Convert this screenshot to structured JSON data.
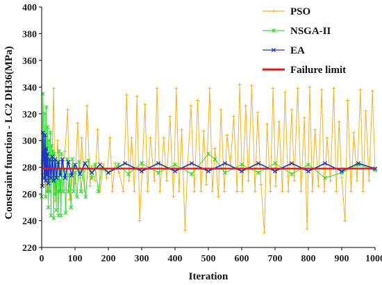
{
  "chart_data": {
    "type": "line",
    "title": "",
    "xlabel": "Iteration",
    "ylabel": "Constraint function - LC2 DH36(MPa)",
    "xlim": [
      0,
      1000
    ],
    "ylim": [
      220,
      400
    ],
    "xticks": [
      0,
      100,
      200,
      300,
      400,
      500,
      600,
      700,
      800,
      900,
      1000
    ],
    "yticks": [
      220,
      240,
      260,
      280,
      300,
      320,
      340,
      360,
      380,
      400
    ],
    "grid": false,
    "legend_position": "top-right",
    "series": [
      {
        "name": "PSO",
        "color": "#f2b21e",
        "marker": "plus",
        "values": [
          [
            2,
            275
          ],
          [
            6,
            292
          ],
          [
            10,
            266
          ],
          [
            14,
            300
          ],
          [
            18,
            262
          ],
          [
            22,
            285
          ],
          [
            26,
            270
          ],
          [
            30,
            276
          ],
          [
            36,
            339
          ],
          [
            40,
            255
          ],
          [
            48,
            300
          ],
          [
            55,
            262
          ],
          [
            62,
            278
          ],
          [
            70,
            292
          ],
          [
            78,
            323
          ],
          [
            84,
            256
          ],
          [
            92,
            282
          ],
          [
            100,
            268
          ],
          [
            108,
            313
          ],
          [
            115,
            272
          ],
          [
            120,
            302
          ],
          [
            128,
            262
          ],
          [
            136,
            326
          ],
          [
            145,
            266
          ],
          [
            150,
            281
          ],
          [
            160,
            270
          ],
          [
            168,
            308
          ],
          [
            175,
            262
          ],
          [
            185,
            282
          ],
          [
            195,
            272
          ],
          [
            205,
            302
          ],
          [
            212,
            262
          ],
          [
            220,
            283
          ],
          [
            232,
            276
          ],
          [
            245,
            262
          ],
          [
            255,
            334
          ],
          [
            262,
            270
          ],
          [
            270,
            302
          ],
          [
            278,
            262
          ],
          [
            286,
            333
          ],
          [
            294,
            240
          ],
          [
            302,
            281
          ],
          [
            310,
            327
          ],
          [
            318,
            262
          ],
          [
            326,
            302
          ],
          [
            338,
            270
          ],
          [
            346,
            339
          ],
          [
            355,
            262
          ],
          [
            366,
            302
          ],
          [
            375,
            270
          ],
          [
            385,
            318
          ],
          [
            395,
            258
          ],
          [
            404,
            339
          ],
          [
            412,
            262
          ],
          [
            420,
            308
          ],
          [
            430,
            233
          ],
          [
            438,
            282
          ],
          [
            448,
            326
          ],
          [
            458,
            262
          ],
          [
            468,
            330
          ],
          [
            478,
            262
          ],
          [
            486,
            307
          ],
          [
            494,
            267
          ],
          [
            504,
            339
          ],
          [
            512,
            262
          ],
          [
            520,
            294
          ],
          [
            530,
            258
          ],
          [
            538,
            323
          ],
          [
            548,
            262
          ],
          [
            556,
            304
          ],
          [
            566,
            282
          ],
          [
            576,
            318
          ],
          [
            586,
            262
          ],
          [
            594,
            342
          ],
          [
            602,
            262
          ],
          [
            612,
            326
          ],
          [
            620,
            270
          ],
          [
            630,
            341
          ],
          [
            640,
            262
          ],
          [
            648,
            321
          ],
          [
            658,
            267
          ],
          [
            668,
            231
          ],
          [
            676,
            312
          ],
          [
            686,
            262
          ],
          [
            694,
            339
          ],
          [
            702,
            266
          ],
          [
            712,
            314
          ],
          [
            722,
            262
          ],
          [
            730,
            336
          ],
          [
            740,
            262
          ],
          [
            750,
            323
          ],
          [
            758,
            270
          ],
          [
            768,
            339
          ],
          [
            778,
            262
          ],
          [
            788,
            317
          ],
          [
            796,
            234
          ],
          [
            804,
            340
          ],
          [
            812,
            262
          ],
          [
            820,
            308
          ],
          [
            830,
            266
          ],
          [
            840,
            338
          ],
          [
            848,
            262
          ],
          [
            856,
            302
          ],
          [
            866,
            270
          ],
          [
            876,
            339
          ],
          [
            884,
            262
          ],
          [
            892,
            314
          ],
          [
            900,
            272
          ],
          [
            910,
            240
          ],
          [
            918,
            330
          ],
          [
            928,
            262
          ],
          [
            936,
            306
          ],
          [
            946,
            270
          ],
          [
            956,
            338
          ],
          [
            964,
            262
          ],
          [
            972,
            322
          ],
          [
            982,
            270
          ],
          [
            992,
            337
          ],
          [
            1000,
            278
          ]
        ]
      },
      {
        "name": "NSGA-II",
        "color": "#33dd33",
        "marker": "star",
        "values": [
          [
            0,
            258
          ],
          [
            2,
            284
          ],
          [
            4,
            335
          ],
          [
            6,
            300
          ],
          [
            8,
            275
          ],
          [
            10,
            320
          ],
          [
            12,
            258
          ],
          [
            14,
            325
          ],
          [
            16,
            262
          ],
          [
            18,
            310
          ],
          [
            20,
            250
          ],
          [
            22,
            300
          ],
          [
            24,
            262
          ],
          [
            26,
            306
          ],
          [
            28,
            244
          ],
          [
            30,
            296
          ],
          [
            32,
            270
          ],
          [
            34,
            292
          ],
          [
            36,
            242
          ],
          [
            38,
            290
          ],
          [
            40,
            260
          ],
          [
            42,
            285
          ],
          [
            44,
            248
          ],
          [
            46,
            282
          ],
          [
            48,
            262
          ],
          [
            50,
            244
          ],
          [
            52,
            292
          ],
          [
            54,
            262
          ],
          [
            56,
            270
          ],
          [
            58,
            244
          ],
          [
            60,
            290
          ],
          [
            64,
            262
          ],
          [
            68,
            278
          ],
          [
            72,
            246
          ],
          [
            76,
            286
          ],
          [
            80,
            262
          ],
          [
            84,
            274
          ],
          [
            88,
            250
          ],
          [
            92,
            286
          ],
          [
            96,
            262
          ],
          [
            100,
            276
          ],
          [
            106,
            258
          ],
          [
            112,
            284
          ],
          [
            118,
            262
          ],
          [
            124,
            278
          ],
          [
            132,
            258
          ],
          [
            140,
            285
          ],
          [
            150,
            272
          ],
          [
            160,
            282
          ],
          [
            170,
            262
          ],
          [
            180,
            279
          ],
          [
            200,
            276
          ],
          [
            230,
            282
          ],
          [
            260,
            275
          ],
          [
            300,
            283
          ],
          [
            350,
            276
          ],
          [
            400,
            282
          ],
          [
            450,
            275
          ],
          [
            500,
            290
          ],
          [
            520,
            286
          ],
          [
            550,
            276
          ],
          [
            600,
            282
          ],
          [
            650,
            276
          ],
          [
            700,
            283
          ],
          [
            750,
            275
          ],
          [
            800,
            282
          ],
          [
            850,
            272
          ],
          [
            900,
            276
          ],
          [
            950,
            282
          ],
          [
            1000,
            278
          ]
        ]
      },
      {
        "name": "EA",
        "color": "#2233cc",
        "marker": "x",
        "values": [
          [
            2,
            266
          ],
          [
            4,
            306
          ],
          [
            6,
            290
          ],
          [
            8,
            272
          ],
          [
            10,
            304
          ],
          [
            12,
            270
          ],
          [
            14,
            294
          ],
          [
            16,
            274
          ],
          [
            18,
            290
          ],
          [
            20,
            268
          ],
          [
            24,
            286
          ],
          [
            28,
            272
          ],
          [
            32,
            288
          ],
          [
            36,
            270
          ],
          [
            40,
            286
          ],
          [
            45,
            272
          ],
          [
            50,
            284
          ],
          [
            56,
            274
          ],
          [
            62,
            286
          ],
          [
            70,
            272
          ],
          [
            80,
            284
          ],
          [
            90,
            274
          ],
          [
            100,
            282
          ],
          [
            115,
            275
          ],
          [
            130,
            283
          ],
          [
            150,
            276
          ],
          [
            175,
            282
          ],
          [
            200,
            276
          ],
          [
            250,
            283
          ],
          [
            300,
            277
          ],
          [
            350,
            283
          ],
          [
            400,
            277
          ],
          [
            450,
            283
          ],
          [
            500,
            277
          ],
          [
            550,
            283
          ],
          [
            600,
            277
          ],
          [
            650,
            283
          ],
          [
            700,
            277
          ],
          [
            750,
            283
          ],
          [
            800,
            277
          ],
          [
            850,
            283
          ],
          [
            900,
            277
          ],
          [
            950,
            283
          ],
          [
            1000,
            279
          ]
        ]
      },
      {
        "name": "Failure limit",
        "color": "#ee1111",
        "marker": "none",
        "values": [
          [
            0,
            279
          ],
          [
            1000,
            279
          ]
        ]
      }
    ]
  }
}
